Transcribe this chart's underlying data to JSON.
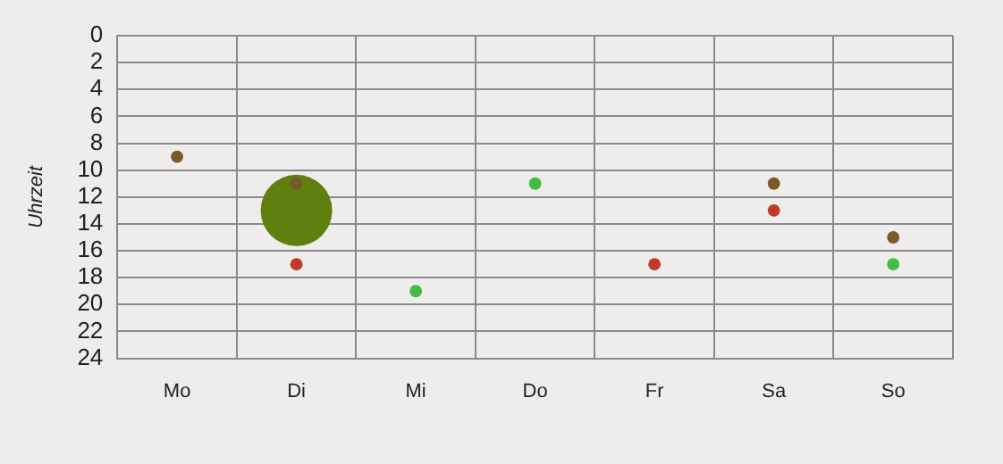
{
  "chart_data": {
    "type": "bubble",
    "ylabel": "Uhrzeit",
    "categories": [
      "Mo",
      "Di",
      "Mi",
      "Do",
      "Fr",
      "Sa",
      "So"
    ],
    "series": [
      {
        "color": "#7a5a2a",
        "values": [
          9,
          11,
          null,
          null,
          null,
          11,
          15
        ],
        "sizes": [
          0.03,
          0.03,
          null,
          null,
          null,
          0.03,
          0.03
        ]
      },
      {
        "color": "#c0392b",
        "values": [
          null,
          17,
          null,
          null,
          17,
          13,
          null
        ],
        "sizes": [
          null,
          0.03,
          null,
          null,
          0.03,
          0.03,
          null
        ]
      },
      {
        "color": "#44bb44",
        "values": [
          null,
          null,
          19,
          11,
          null,
          null,
          17
        ],
        "sizes": [
          null,
          null,
          0.03,
          0.03,
          null,
          null,
          0.03
        ]
      },
      {
        "color": "#5f7f0f",
        "values": [
          null,
          13,
          null,
          null,
          null,
          null,
          null
        ],
        "sizes": [
          null,
          1,
          null,
          null,
          null,
          null,
          null
        ]
      }
    ],
    "ylim": [
      24,
      0
    ],
    "yticks": [
      0,
      2,
      4,
      6,
      8,
      10,
      12,
      14,
      16,
      18,
      20,
      22,
      24
    ],
    "grid": true,
    "legend": false,
    "marker": "circle"
  }
}
